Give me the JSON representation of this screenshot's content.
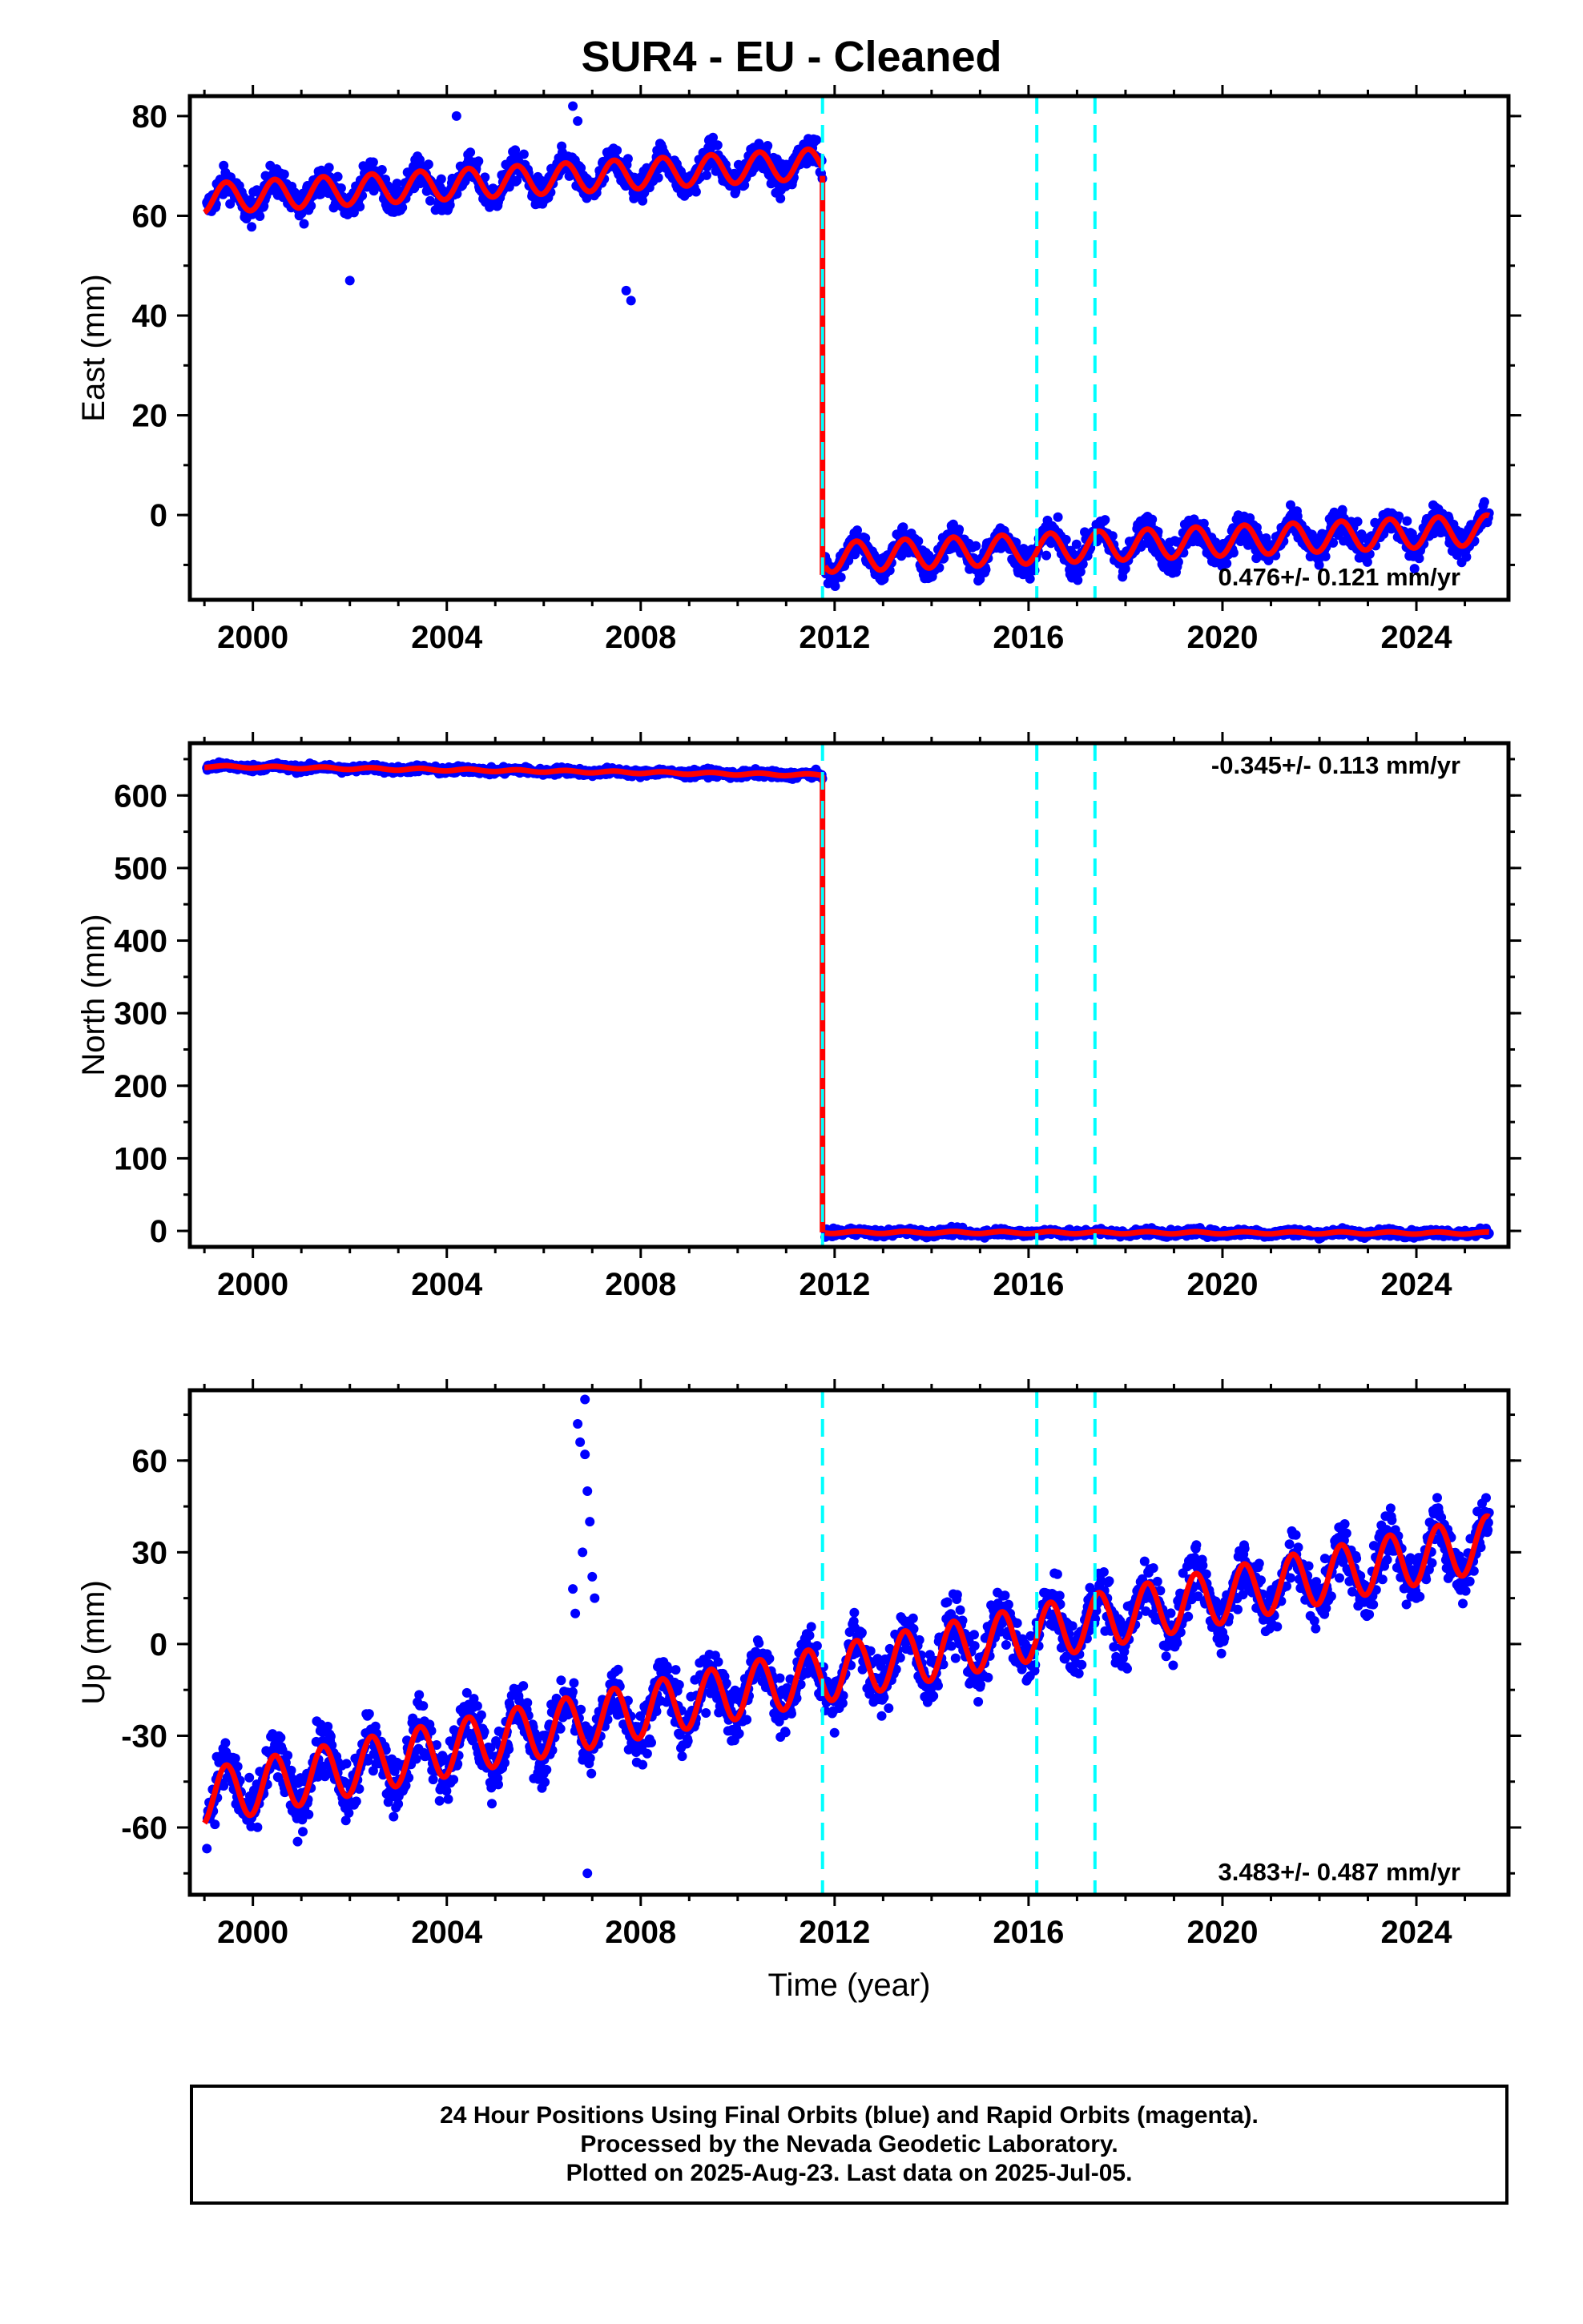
{
  "title": "SUR4  - EU - Cleaned",
  "footer": {
    "line1": "24 Hour Positions Using Final Orbits (blue) and Rapid Orbits (magenta).",
    "line2": "Processed by the Nevada Geodetic Laboratory.",
    "line3": "Plotted on 2025-Aug-23. Last data on 2025-Jul-05."
  },
  "colors": {
    "final_orbits": "#0000ff",
    "model_fit": "#ff0000",
    "event_lines": "#00ffff"
  },
  "chart_data": [
    {
      "type": "scatter",
      "name": "east",
      "ylabel": "East (mm)",
      "xlabel": "",
      "xlim": [
        1998.7,
        2025.9
      ],
      "ylim": [
        -17,
        84
      ],
      "xticks": [
        2000,
        2004,
        2008,
        2012,
        2016,
        2020,
        2024
      ],
      "yticks": [
        0,
        20,
        40,
        60,
        80
      ],
      "rate_label": "0.476+/- 0.121 mm/yr",
      "rate_position": "bottom-right",
      "event_lines": [
        2011.75,
        2016.17,
        2017.37
      ],
      "model_segments": [
        {
          "x_start": 1999.0,
          "x_end": 2011.75,
          "y_start": 63.5,
          "y_end": 70.5,
          "amplitude": 3.0
        },
        {
          "x_start": 2011.8,
          "x_end": 2025.5,
          "y_start": -8.5,
          "y_end": -3.0,
          "amplitude": 3.0
        }
      ],
      "step": {
        "x": 2011.75,
        "y_from": 68,
        "y_to": -12
      }
    },
    {
      "type": "scatter",
      "name": "north",
      "ylabel": "North (mm)",
      "xlabel": "",
      "xlim": [
        1998.7,
        2025.9
      ],
      "ylim": [
        -22,
        672
      ],
      "xticks": [
        2000,
        2004,
        2008,
        2012,
        2016,
        2020,
        2024
      ],
      "yticks": [
        0,
        100,
        200,
        300,
        400,
        500,
        600
      ],
      "rate_label": "-0.345+/- 0.113 mm/yr",
      "rate_position": "top-right",
      "event_lines": [
        2011.75,
        2016.17,
        2017.37
      ],
      "model_segments": [
        {
          "x_start": 1999.0,
          "x_end": 2011.75,
          "y_start": 640,
          "y_end": 628,
          "amplitude": 1.5
        },
        {
          "x_start": 2011.8,
          "x_end": 2025.5,
          "y_start": -2,
          "y_end": -3,
          "amplitude": 1.5
        }
      ],
      "step": {
        "x": 2011.75,
        "y_from": 628,
        "y_to": -2
      }
    },
    {
      "type": "scatter",
      "name": "up",
      "ylabel": "Up (mm)",
      "xlabel": "Time (year)",
      "xlim": [
        1998.7,
        2025.9
      ],
      "ylim": [
        -82,
        83
      ],
      "xticks": [
        2000,
        2004,
        2008,
        2012,
        2016,
        2020,
        2024
      ],
      "yticks": [
        -60,
        -30,
        0,
        30,
        60
      ],
      "rate_label": "3.483+/- 0.487 mm/yr",
      "rate_position": "bottom-right",
      "event_lines": [
        2011.75,
        2016.17,
        2017.37
      ],
      "model_segments": [
        {
          "x_start": 1999.0,
          "x_end": 2025.5,
          "y_start": -50,
          "y_end": 33,
          "amplitude": 9.0
        }
      ],
      "step": null
    }
  ]
}
